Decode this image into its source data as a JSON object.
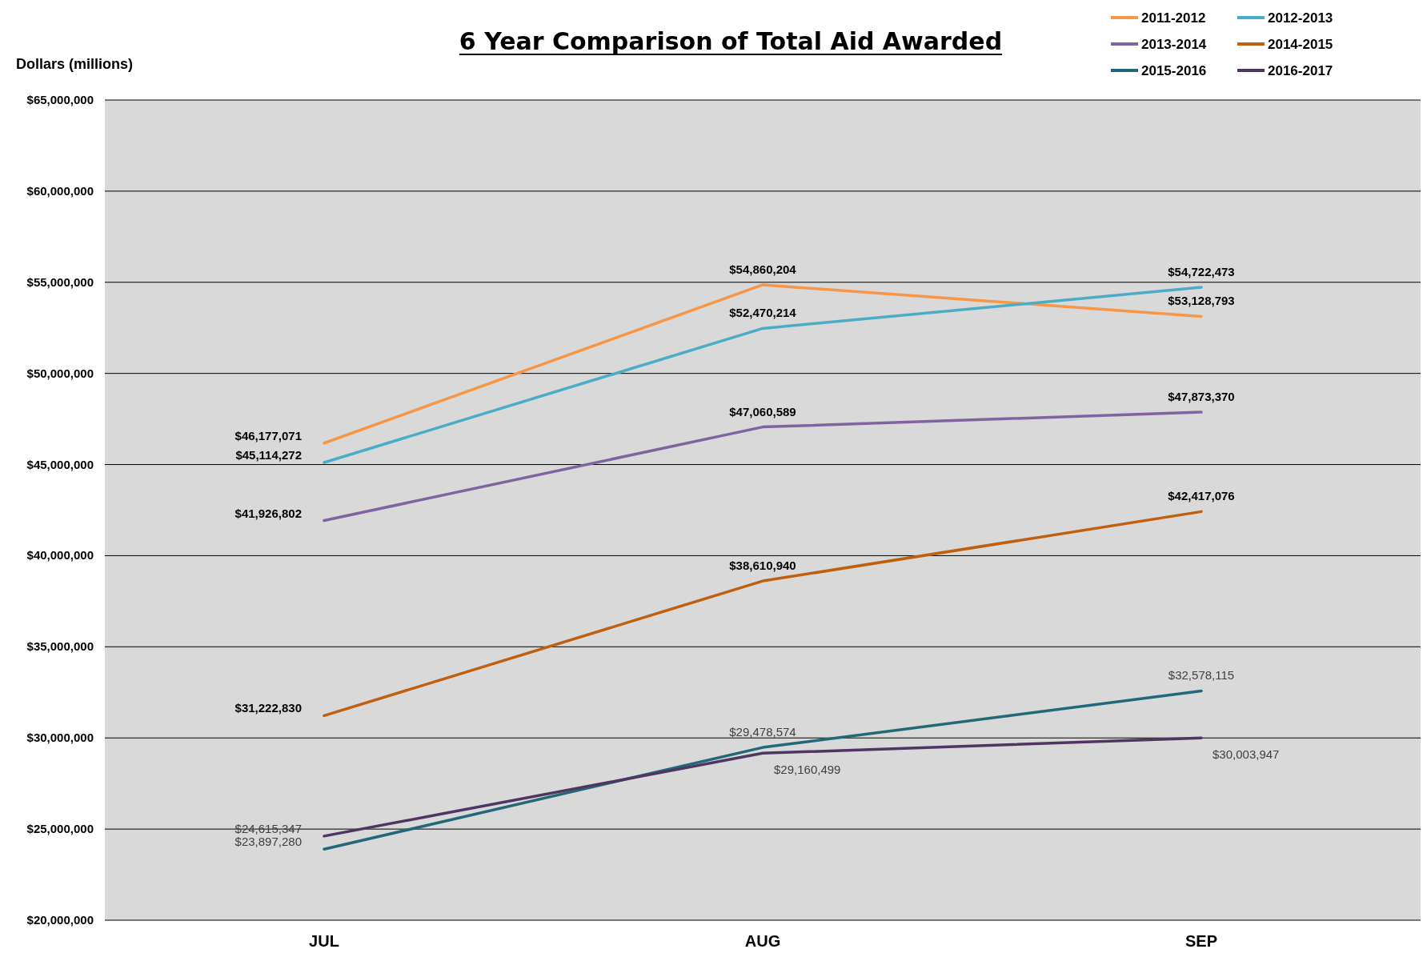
{
  "chart_data": {
    "type": "line",
    "title": "6 Year Comparison of Total Aid Awarded",
    "ylabel": "Dollars (millions)",
    "categories": [
      "JUL",
      "AUG",
      "SEP"
    ],
    "series": [
      {
        "name": "2011-2012",
        "color": "#f79646",
        "values": [
          46177071,
          54860204,
          53128793
        ],
        "value_labels": [
          "$46,177,071",
          "$54,860,204",
          "$53,128,793"
        ]
      },
      {
        "name": "2012-2013",
        "color": "#4bacc6",
        "values": [
          45114272,
          52470214,
          54722473
        ],
        "value_labels": [
          "$45,114,272",
          "$52,470,214",
          "$54,722,473"
        ]
      },
      {
        "name": "2013-2014",
        "color": "#8064a2",
        "values": [
          41926802,
          47060589,
          47873370
        ],
        "value_labels": [
          "$41,926,802",
          "$47,060,589",
          "$47,873,370"
        ]
      },
      {
        "name": "2014-2015",
        "color": "#c0600f",
        "values": [
          31222830,
          38610940,
          42417076
        ],
        "value_labels": [
          "$31,222,830",
          "$38,610,940",
          "$42,417,076"
        ]
      },
      {
        "name": "2015-2016",
        "color": "#226878",
        "values": [
          23897280,
          29478574,
          32578115
        ],
        "value_labels": [
          "$23,897,280",
          "$29,478,574",
          "$32,578,115"
        ]
      },
      {
        "name": "2016-2017",
        "color": "#4e3562",
        "values": [
          24615347,
          29160499,
          30003947
        ],
        "value_labels": [
          "$24,615,347",
          "$29,160,499",
          "$30,003,947"
        ]
      }
    ],
    "ylim": [
      20000000,
      65000000
    ],
    "yticks": [
      {
        "value": 20000000,
        "label": "$20,000,000"
      },
      {
        "value": 25000000,
        "label": "$25,000,000"
      },
      {
        "value": 30000000,
        "label": "$30,000,000"
      },
      {
        "value": 35000000,
        "label": "$35,000,000"
      },
      {
        "value": 40000000,
        "label": "$40,000,000"
      },
      {
        "value": 45000000,
        "label": "$45,000,000"
      },
      {
        "value": 50000000,
        "label": "$50,000,000"
      },
      {
        "value": 55000000,
        "label": "$55,000,000"
      },
      {
        "value": 60000000,
        "label": "$60,000,000"
      },
      {
        "value": 65000000,
        "label": "$65,000,000"
      }
    ],
    "grid": "y",
    "legend": "top right",
    "marker": "none"
  }
}
